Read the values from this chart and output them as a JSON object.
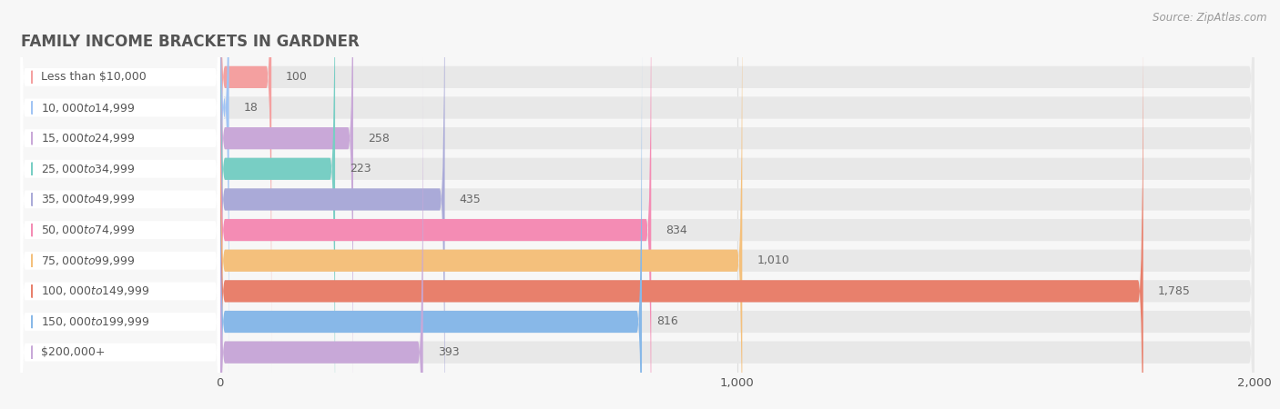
{
  "title": "FAMILY INCOME BRACKETS IN GARDNER",
  "source": "Source: ZipAtlas.com",
  "categories": [
    "Less than $10,000",
    "$10,000 to $14,999",
    "$15,000 to $24,999",
    "$25,000 to $34,999",
    "$35,000 to $49,999",
    "$50,000 to $74,999",
    "$75,000 to $99,999",
    "$100,000 to $149,999",
    "$150,000 to $199,999",
    "$200,000+"
  ],
  "values": [
    100,
    18,
    258,
    223,
    435,
    834,
    1010,
    1785,
    816,
    393
  ],
  "bar_colors": [
    "#F4A0A0",
    "#A0C4F4",
    "#C9A8D8",
    "#78CEC4",
    "#AAAAD8",
    "#F48CB4",
    "#F4C07C",
    "#E8806C",
    "#88B8E8",
    "#C8A8D8"
  ],
  "xlim": [
    0,
    2000
  ],
  "xticks": [
    0,
    1000,
    2000
  ],
  "xticklabels": [
    "0",
    "1,000",
    "2,000"
  ],
  "background_color": "#f7f7f7",
  "bar_background_color": "#e8e8e8",
  "title_color": "#555555",
  "label_color": "#555555",
  "value_color": "#666666",
  "source_color": "#999999",
  "grid_color": "#dddddd",
  "white_label_bg": "#ffffff"
}
